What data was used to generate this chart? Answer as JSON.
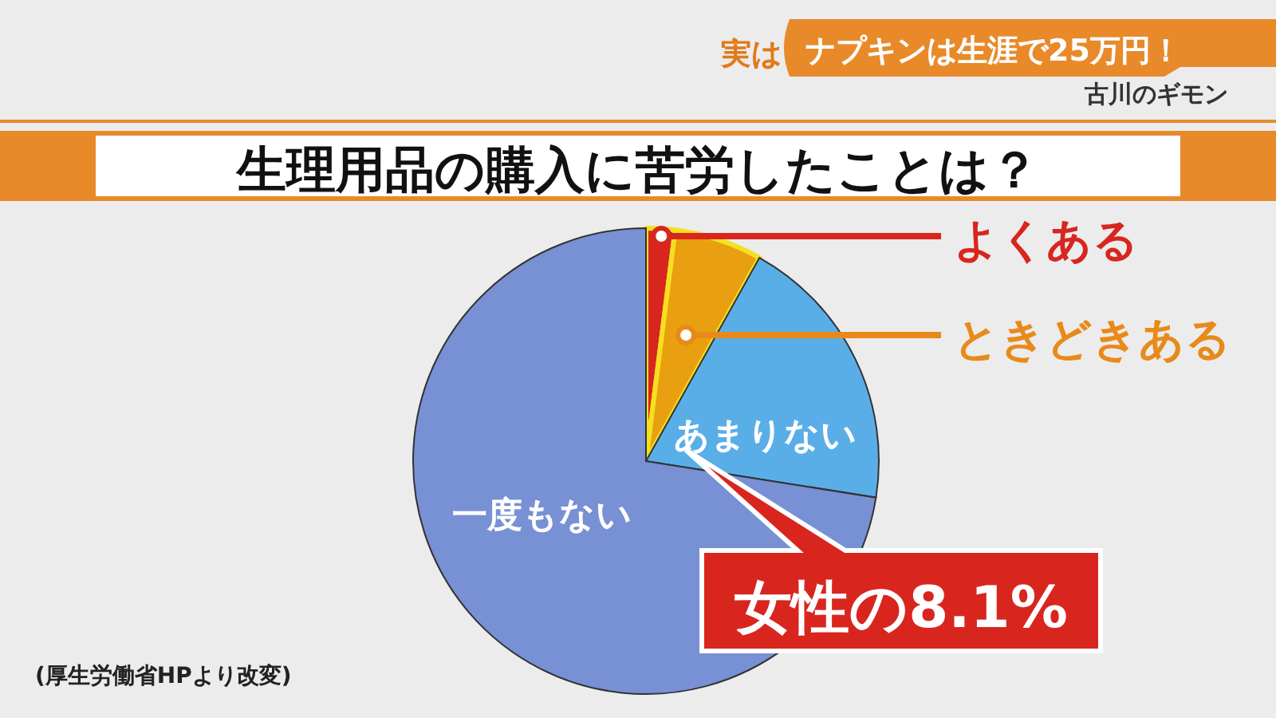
{
  "chart_data": {
    "type": "pie",
    "title": "生理用品の購入に苦労したことは？",
    "categories": [
      "よくある",
      "ときどきある",
      "あまりない",
      "一度もない"
    ],
    "values": [
      2.0,
      6.1,
      19.4,
      72.5
    ],
    "colors": [
      "#d8261f",
      "#e8a010",
      "#5aaee8",
      "#7890d4"
    ],
    "annotations": [
      "実は",
      "ナプキンは生涯で25万円！",
      "古川のギモン",
      "女性の8.1%",
      "(厚生労働省HPより改変)"
    ]
  }
}
